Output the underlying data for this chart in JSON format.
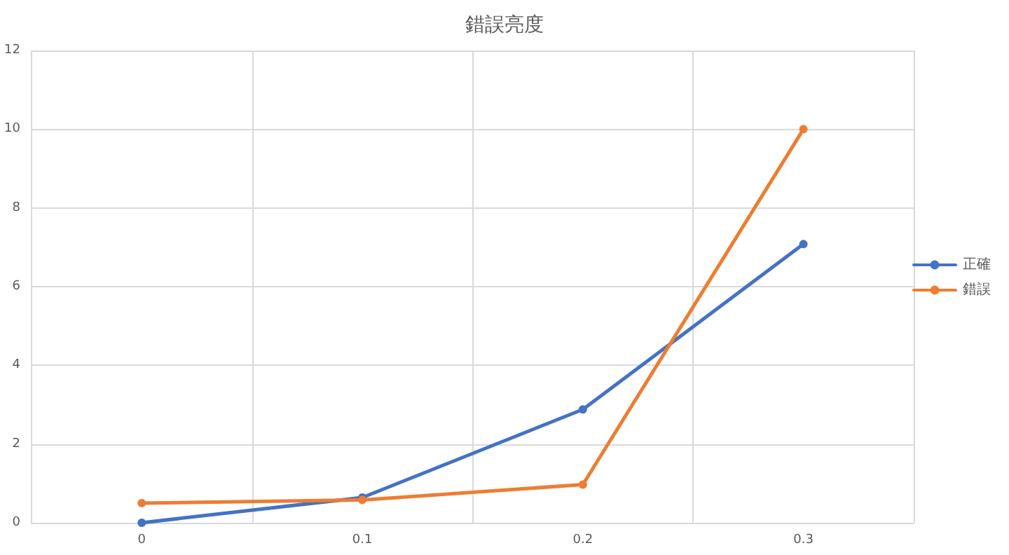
{
  "chart_data": {
    "type": "line",
    "title": "錯誤亮度",
    "categories": [
      "0",
      "0.1",
      "0.2",
      "0.3"
    ],
    "series": [
      {
        "name": "正確",
        "color": "#4472c4",
        "values": [
          0,
          0.64,
          2.88,
          7.08
        ]
      },
      {
        "name": "錯誤",
        "color": "#ed7d31",
        "values": [
          0.5,
          0.58,
          0.97,
          10.0
        ]
      }
    ],
    "ylim": [
      0,
      12
    ],
    "yticks": [
      0,
      2,
      4,
      6,
      8,
      10,
      12
    ],
    "grid": true,
    "legend": "right",
    "marker": "circle",
    "line_style": "solid"
  }
}
